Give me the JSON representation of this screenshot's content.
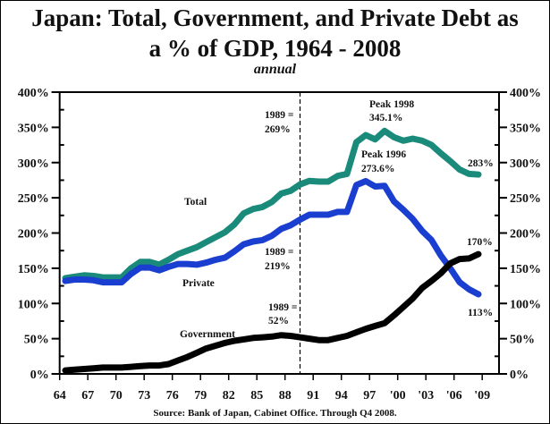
{
  "chart_data": {
    "type": "line",
    "title_line1": "Japan: Total, Government, and Private Debt as",
    "title_line2": "a % of GDP, 1964 - 2008",
    "subtitle": "annual",
    "source": "Source: Bank of Japan, Cabinet Office. Through Q4 2008.",
    "xlabel": "",
    "ylabel": "",
    "ylim": [
      0,
      400
    ],
    "xlim": [
      1964,
      2010
    ],
    "grid": false,
    "y_ticks": [
      "0%",
      "50%",
      "100%",
      "150%",
      "200%",
      "250%",
      "300%",
      "350%",
      "400%"
    ],
    "y_tick_values": [
      0,
      50,
      100,
      150,
      200,
      250,
      300,
      350,
      400
    ],
    "x_ticks": [
      "64",
      "67",
      "70",
      "73",
      "76",
      "79",
      "82",
      "85",
      "88",
      "91",
      "94",
      "97",
      "'00",
      "'03",
      "'06",
      "'09"
    ],
    "x_tick_values": [
      1964,
      1967,
      1970,
      1973,
      1976,
      1979,
      1982,
      1985,
      1988,
      1991,
      1994,
      1997,
      2000,
      2003,
      2006,
      2009
    ],
    "x": [
      1964,
      1965,
      1966,
      1967,
      1968,
      1969,
      1970,
      1971,
      1972,
      1973,
      1974,
      1975,
      1976,
      1977,
      1978,
      1979,
      1980,
      1981,
      1982,
      1983,
      1984,
      1985,
      1986,
      1987,
      1988,
      1989,
      1990,
      1991,
      1992,
      1993,
      1994,
      1995,
      1996,
      1997,
      1998,
      1999,
      2000,
      2001,
      2002,
      2003,
      2004,
      2005,
      2006,
      2007,
      2008
    ],
    "series": [
      {
        "name": "Total",
        "color": "#1a8a7a",
        "values": [
          136,
          138,
          140,
          139,
          137,
          137,
          137,
          150,
          159,
          159,
          155,
          162,
          170,
          175,
          180,
          187,
          194,
          201,
          212,
          228,
          234,
          237,
          244,
          256,
          260,
          269,
          274,
          273,
          273,
          281,
          284,
          329,
          339,
          333,
          345,
          336,
          331,
          334,
          331,
          325,
          313,
          302,
          290,
          284,
          283
        ]
      },
      {
        "name": "Private",
        "color": "#1a3fd0",
        "values": [
          132,
          134,
          134,
          133,
          130,
          130,
          130,
          142,
          151,
          151,
          147,
          152,
          156,
          156,
          155,
          158,
          162,
          165,
          174,
          184,
          188,
          190,
          196,
          206,
          211,
          219,
          226,
          226,
          226,
          230,
          230,
          268,
          273.6,
          266,
          267,
          245,
          233,
          220,
          203,
          190,
          168,
          150,
          130,
          120,
          113
        ]
      },
      {
        "name": "Government",
        "color": "#000000",
        "values": [
          5,
          6,
          7,
          8,
          9,
          9,
          9,
          10,
          11,
          12,
          12,
          14,
          19,
          24,
          30,
          36,
          40,
          44,
          47,
          49,
          51,
          52,
          53,
          55,
          54,
          52,
          50,
          48,
          48,
          51,
          54,
          59,
          64,
          68,
          72,
          83,
          95,
          107,
          122,
          132,
          143,
          157,
          163,
          164,
          170
        ]
      }
    ],
    "labels": {
      "total": "Total",
      "private": "Private",
      "government": "Government"
    },
    "annotations": {
      "marker_year": 1989,
      "total_1989": [
        "1989 =",
        "269%"
      ],
      "private_1989": [
        "1989 =",
        "219%"
      ],
      "gov_1989": [
        "1989 =",
        "52%"
      ],
      "peak_total": [
        "Peak 1998",
        "345.1%"
      ],
      "peak_private": [
        "Peak 1996",
        "273.6%"
      ],
      "end_total": "283%",
      "end_gov": "170%",
      "end_private": "113%"
    },
    "legend": "none (inline labels)"
  }
}
